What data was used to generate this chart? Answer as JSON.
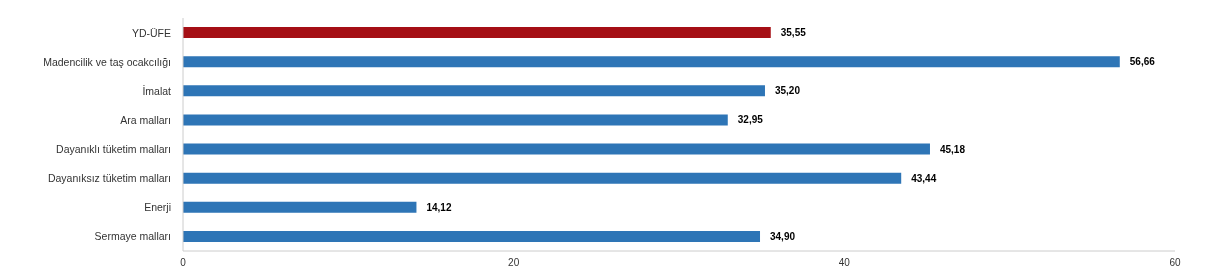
{
  "chart_data": {
    "type": "bar",
    "orientation": "horizontal",
    "categories": [
      "YD-ÜFE",
      "Madencilik ve taş ocakcılığı",
      "İmalat",
      "Ara malları",
      "Dayanıklı tüketim malları",
      "Dayanıksız tüketim malları",
      "Enerji",
      "Sermaye malları"
    ],
    "values": [
      35.55,
      56.66,
      35.2,
      32.95,
      45.18,
      43.44,
      14.12,
      34.9
    ],
    "colors": [
      "#a50f15",
      "#2e75b6",
      "#2e75b6",
      "#2e75b6",
      "#2e75b6",
      "#2e75b6",
      "#2e75b6",
      "#2e75b6"
    ],
    "value_labels": [
      "35,55",
      "56,66",
      "35,20",
      "32,95",
      "45,18",
      "43,44",
      "14,12",
      "34,90"
    ],
    "xlim": [
      0,
      60
    ],
    "xticks": [
      0,
      20,
      40,
      60
    ],
    "grid": false
  }
}
